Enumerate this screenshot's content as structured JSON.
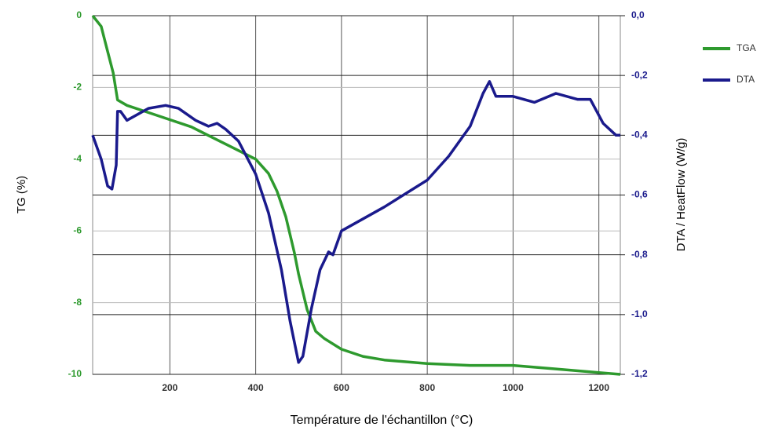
{
  "chart_data": {
    "type": "line",
    "x_label": "Température de l'échantillon (°C)",
    "y_label": "TG (%)",
    "y2_label": "DTA / HeatFlow (W/g)",
    "xlim": [
      20,
      1250
    ],
    "xticks": [
      200,
      400,
      600,
      800,
      1000,
      1200
    ],
    "ylim": [
      -10,
      0
    ],
    "yticks": [
      0,
      -2,
      -4,
      -6,
      -8,
      -10
    ],
    "y2lim": [
      -1.2,
      0
    ],
    "y2ticks": [
      {
        "value": 0,
        "label": "0,0"
      },
      {
        "value": -0.2,
        "label": "-0,2"
      },
      {
        "value": -0.4,
        "label": "-0,4"
      },
      {
        "value": -0.6,
        "label": "-0,6"
      },
      {
        "value": -0.8,
        "label": "-0,8"
      },
      {
        "value": -1.0,
        "label": "-1,0"
      },
      {
        "value": -1.2,
        "label": "-1,2"
      }
    ],
    "grid": true,
    "legend": "right",
    "series": [
      {
        "name": "TGA",
        "color": "#2e9a2e",
        "axis": "y",
        "x": [
          20,
          40,
          50,
          68,
          78,
          100,
          150,
          200,
          250,
          300,
          350,
          400,
          430,
          450,
          470,
          490,
          500,
          520,
          540,
          560,
          600,
          650,
          700,
          800,
          900,
          1000,
          1100,
          1200,
          1250
        ],
        "values": [
          0,
          -0.3,
          -0.77,
          -1.6,
          -2.35,
          -2.5,
          -2.7,
          -2.9,
          -3.1,
          -3.4,
          -3.7,
          -4.0,
          -4.4,
          -4.9,
          -5.6,
          -6.6,
          -7.2,
          -8.2,
          -8.8,
          -9.0,
          -9.3,
          -9.5,
          -9.6,
          -9.7,
          -9.75,
          -9.75,
          -9.85,
          -9.95,
          -10.0
        ]
      },
      {
        "name": "DTA",
        "color": "#1a1a8c",
        "axis": "y2",
        "x": [
          20,
          40,
          55,
          65,
          75,
          78,
          85,
          100,
          150,
          190,
          220,
          260,
          290,
          310,
          330,
          360,
          400,
          430,
          460,
          480,
          500,
          510,
          530,
          550,
          570,
          580,
          600,
          700,
          800,
          850,
          900,
          930,
          945,
          960,
          1000,
          1050,
          1100,
          1150,
          1180,
          1210,
          1240,
          1250
        ],
        "values": [
          -0.4,
          -0.48,
          -0.57,
          -0.58,
          -0.5,
          -0.32,
          -0.32,
          -0.35,
          -0.31,
          -0.3,
          -0.31,
          -0.35,
          -0.37,
          -0.36,
          -0.38,
          -0.42,
          -0.53,
          -0.66,
          -0.85,
          -1.02,
          -1.16,
          -1.14,
          -0.98,
          -0.85,
          -0.79,
          -0.8,
          -0.72,
          -0.64,
          -0.55,
          -0.47,
          -0.37,
          -0.26,
          -0.22,
          -0.27,
          -0.27,
          -0.29,
          -0.26,
          -0.28,
          -0.28,
          -0.36,
          -0.4,
          -0.4
        ]
      }
    ]
  }
}
